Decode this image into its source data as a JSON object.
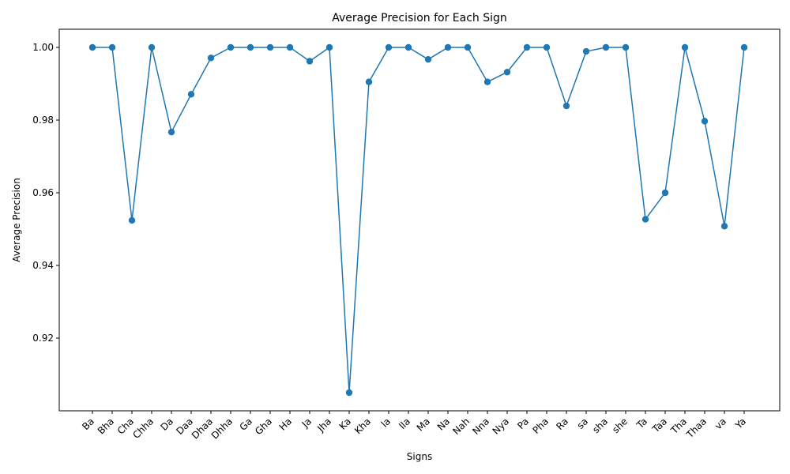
{
  "chart_data": {
    "type": "line",
    "title": "Average Precision for Each Sign",
    "xlabel": "Signs",
    "ylabel": "Average Precision",
    "categories": [
      "Ba",
      "Bha",
      "Cha",
      "Chha",
      "Da",
      "Daa",
      "Dhaa",
      "Dhha",
      "Ga",
      "Gha",
      "Ha",
      "Ja",
      "Jha",
      "Ka",
      "Kha",
      "la",
      "lla",
      "Ma",
      "Na",
      "Nah",
      "Nna",
      "Nya",
      "Pa",
      "Pha",
      "Ra",
      "sa",
      "sha",
      "she",
      "Ta",
      "Taa",
      "Tha",
      "Thaa",
      "va",
      "Ya"
    ],
    "series": [
      {
        "values": [
          1.0,
          1.0,
          0.9524,
          1.0,
          0.9767,
          0.9871,
          0.9971,
          1.0,
          1.0,
          1.0,
          1.0,
          0.9962,
          1.0,
          0.905,
          0.9905,
          1.0,
          1.0,
          0.9967,
          1.0,
          1.0,
          0.9905,
          0.9932,
          1.0,
          1.0,
          0.9839,
          0.9989,
          1.0,
          1.0,
          0.9527,
          0.96,
          1.0,
          0.9797,
          0.9508,
          1.0
        ]
      }
    ],
    "ylim": [
      0.9,
      1.005
    ],
    "yticks": [
      0.92,
      0.94,
      0.96,
      0.98,
      1.0
    ],
    "ytick_labels": [
      "0.92",
      "0.94",
      "0.96",
      "0.98",
      "1.00"
    ],
    "grid": false,
    "line_color": "#1f77b4",
    "marker": "circle"
  }
}
